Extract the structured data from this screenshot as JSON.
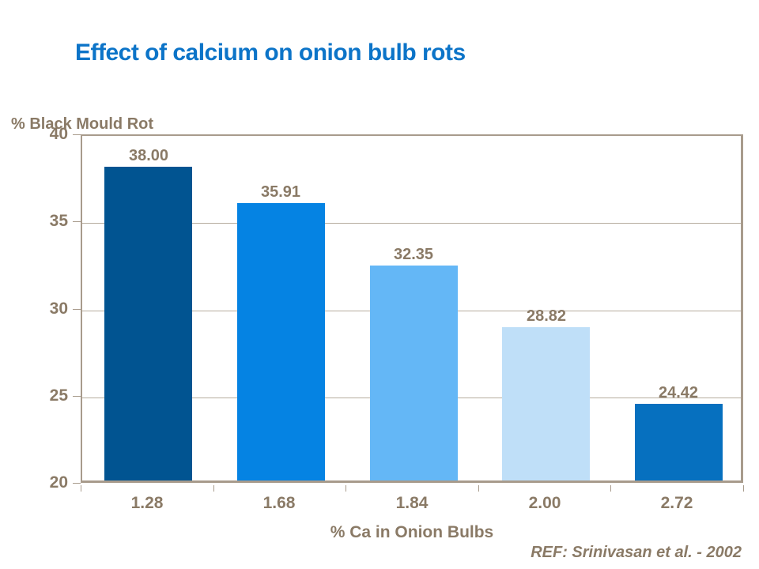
{
  "slide": {
    "background": "#ffffff"
  },
  "chart_data": {
    "type": "bar",
    "title": "Effect of calcium on onion bulb rots",
    "xlabel": "% Ca in Onion Bulbs",
    "ylabel": "% Black Mould Rot",
    "categories": [
      "1.28",
      "1.68",
      "1.84",
      "2.00",
      "2.72"
    ],
    "values": [
      38.0,
      35.91,
      32.35,
      28.82,
      24.42
    ],
    "value_labels": [
      "38.00",
      "35.91",
      "32.35",
      "28.82",
      "24.42"
    ],
    "bar_colors": [
      "#015491",
      "#0583e3",
      "#64b7f6",
      "#bfdff8",
      "#0670bf"
    ],
    "ylim": [
      20,
      40
    ],
    "yticks": [
      "20",
      "25",
      "30",
      "35",
      "40"
    ],
    "grid": true,
    "legend": false,
    "annotation": "REF: Srinivasan et al. - 2002"
  },
  "colors": {
    "title_text": "#0c74c8",
    "label_text": "#8a7a66",
    "axis_frame": "#a89b8c",
    "gridline": "#b6ac9e",
    "background": "#ffffff"
  }
}
